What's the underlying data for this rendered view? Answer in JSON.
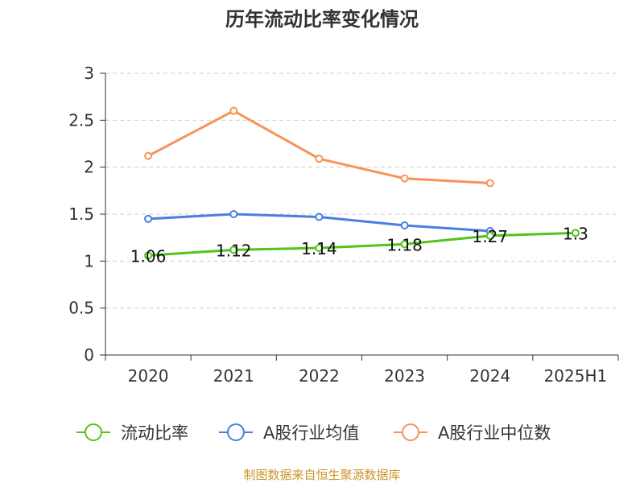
{
  "chart_data": {
    "type": "line",
    "title": "历年流动比率变化情况",
    "xlabel": "",
    "ylabel": "",
    "categories": [
      "2020",
      "2021",
      "2022",
      "2023",
      "2024",
      "2025H1"
    ],
    "ylim": [
      0,
      3
    ],
    "yticks": [
      "0",
      "0.5",
      "1",
      "1.5",
      "2",
      "2.5",
      "3"
    ],
    "grid": true,
    "legend_position": "bottom",
    "series": [
      {
        "name": "流动比率",
        "color": "#52c41a",
        "values": [
          1.06,
          1.12,
          1.14,
          1.18,
          1.27,
          1.3
        ],
        "data_labels": [
          "1.06",
          "1.12",
          "1.14",
          "1.18",
          "1.27",
          "1.3"
        ]
      },
      {
        "name": "A股行业均值",
        "color": "#4a7fe0",
        "values": [
          1.45,
          1.5,
          1.47,
          1.38,
          1.32,
          null
        ]
      },
      {
        "name": "A股行业中位数",
        "color": "#f89258",
        "values": [
          2.12,
          2.6,
          2.09,
          1.88,
          1.83,
          null
        ]
      }
    ]
  },
  "source": "制图数据来自恒生聚源数据库"
}
